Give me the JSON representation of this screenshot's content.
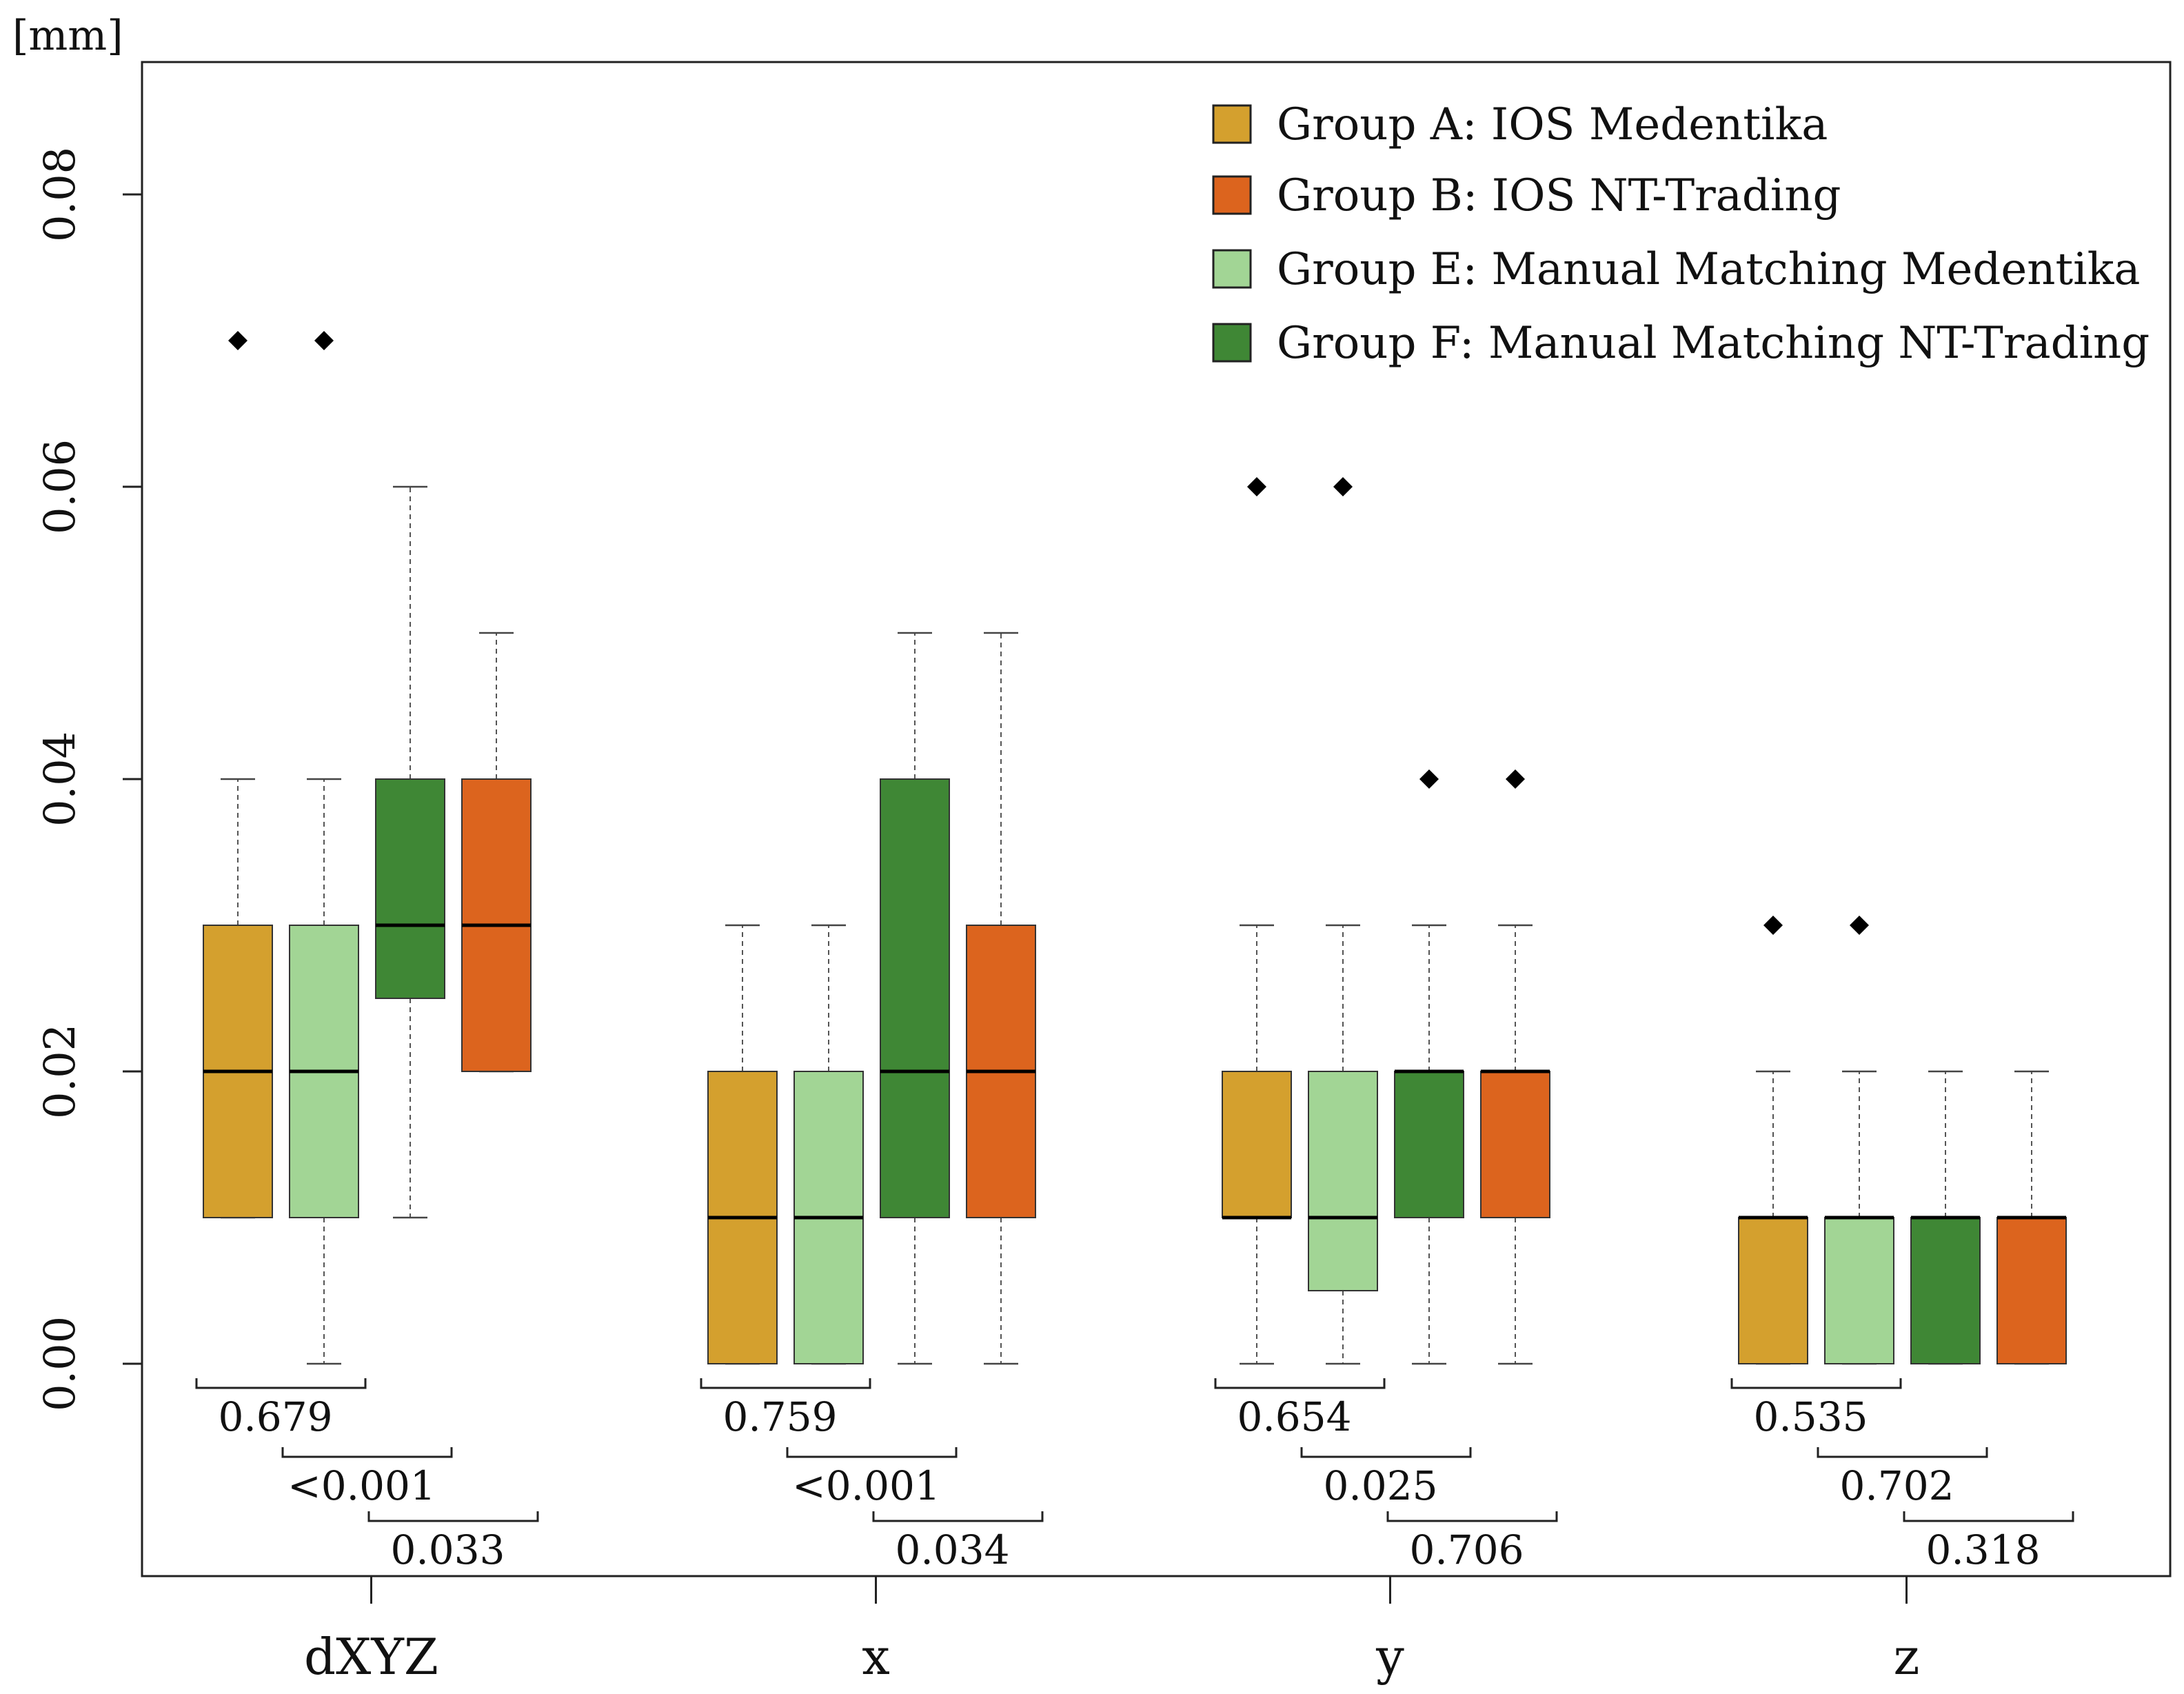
{
  "chart_data": {
    "type": "boxplot",
    "unit_label": "[mm]",
    "ylim": [
      -0.014,
      0.0882
    ],
    "y_ticks": [
      {
        "value": 0.0,
        "label": "0.00"
      },
      {
        "value": 0.02,
        "label": "0.02"
      },
      {
        "value": 0.04,
        "label": "0.04"
      },
      {
        "value": 0.06,
        "label": "0.06"
      },
      {
        "value": 0.08,
        "label": "0.08"
      }
    ],
    "legend_position": "top-right",
    "series": [
      {
        "name": "Group A: IOS Medentika",
        "color": "#D4A02E"
      },
      {
        "name": "Group B: IOS NT-Trading",
        "color": "#DC641E"
      },
      {
        "name": "Group E: Manual Matching Medentika",
        "color": "#A2D595"
      },
      {
        "name": "Group F: Manual Matching NT-Trading",
        "color": "#3F8735"
      }
    ],
    "box_order": [
      "Group A: IOS Medentika",
      "Group E: Manual Matching Medentika",
      "Group F: Manual Matching NT-Trading",
      "Group B: IOS NT-Trading"
    ],
    "categories": [
      {
        "label": "dXYZ",
        "boxes": [
          {
            "series": "Group A: IOS Medentika",
            "whisker_low": 0.01,
            "q1": 0.01,
            "median": 0.02,
            "q3": 0.03,
            "whisker_high": 0.04,
            "outliers": [
              0.07
            ]
          },
          {
            "series": "Group E: Manual Matching Medentika",
            "whisker_low": 0.0,
            "q1": 0.01,
            "median": 0.02,
            "q3": 0.03,
            "whisker_high": 0.04,
            "outliers": [
              0.07
            ]
          },
          {
            "series": "Group F: Manual Matching NT-Trading",
            "whisker_low": 0.01,
            "q1": 0.025,
            "median": 0.03,
            "q3": 0.04,
            "whisker_high": 0.06,
            "outliers": []
          },
          {
            "series": "Group B: IOS NT-Trading",
            "whisker_low": 0.02,
            "q1": 0.02,
            "median": 0.03,
            "q3": 0.04,
            "whisker_high": 0.05,
            "outliers": []
          }
        ],
        "comparisons": [
          {
            "from": 0,
            "to": 1,
            "p": "0.679"
          },
          {
            "from": 1,
            "to": 2,
            "p": "<0.001"
          },
          {
            "from": 2,
            "to": 3,
            "p": "0.033"
          }
        ]
      },
      {
        "label": "x",
        "boxes": [
          {
            "series": "Group A: IOS Medentika",
            "whisker_low": 0.0,
            "q1": 0.0,
            "median": 0.01,
            "q3": 0.02,
            "whisker_high": 0.03,
            "outliers": []
          },
          {
            "series": "Group E: Manual Matching Medentika",
            "whisker_low": 0.0,
            "q1": 0.0,
            "median": 0.01,
            "q3": 0.02,
            "whisker_high": 0.03,
            "outliers": []
          },
          {
            "series": "Group F: Manual Matching NT-Trading",
            "whisker_low": 0.0,
            "q1": 0.01,
            "median": 0.02,
            "q3": 0.04,
            "whisker_high": 0.05,
            "outliers": []
          },
          {
            "series": "Group B: IOS NT-Trading",
            "whisker_low": 0.0,
            "q1": 0.01,
            "median": 0.02,
            "q3": 0.03,
            "whisker_high": 0.05,
            "outliers": []
          }
        ],
        "comparisons": [
          {
            "from": 0,
            "to": 1,
            "p": "0.759"
          },
          {
            "from": 1,
            "to": 2,
            "p": "<0.001"
          },
          {
            "from": 2,
            "to": 3,
            "p": "0.034"
          }
        ]
      },
      {
        "label": "y",
        "boxes": [
          {
            "series": "Group A: IOS Medentika",
            "whisker_low": 0.0,
            "q1": 0.01,
            "median": 0.01,
            "q3": 0.02,
            "whisker_high": 0.03,
            "outliers": [
              0.06
            ]
          },
          {
            "series": "Group E: Manual Matching Medentika",
            "whisker_low": 0.0,
            "q1": 0.005,
            "median": 0.01,
            "q3": 0.02,
            "whisker_high": 0.03,
            "outliers": [
              0.06
            ]
          },
          {
            "series": "Group F: Manual Matching NT-Trading",
            "whisker_low": 0.0,
            "q1": 0.01,
            "median": 0.02,
            "q3": 0.02,
            "whisker_high": 0.03,
            "outliers": [
              0.04
            ]
          },
          {
            "series": "Group B: IOS NT-Trading",
            "whisker_low": 0.0,
            "q1": 0.01,
            "median": 0.02,
            "q3": 0.02,
            "whisker_high": 0.03,
            "outliers": [
              0.04
            ]
          }
        ],
        "comparisons": [
          {
            "from": 0,
            "to": 1,
            "p": "0.654"
          },
          {
            "from": 1,
            "to": 2,
            "p": "0.025"
          },
          {
            "from": 2,
            "to": 3,
            "p": "0.706"
          }
        ]
      },
      {
        "label": "z",
        "boxes": [
          {
            "series": "Group A: IOS Medentika",
            "whisker_low": 0.0,
            "q1": 0.0,
            "median": 0.01,
            "q3": 0.01,
            "whisker_high": 0.02,
            "outliers": [
              0.03
            ]
          },
          {
            "series": "Group E: Manual Matching Medentika",
            "whisker_low": 0.0,
            "q1": 0.0,
            "median": 0.01,
            "q3": 0.01,
            "whisker_high": 0.02,
            "outliers": [
              0.03
            ]
          },
          {
            "series": "Group F: Manual Matching NT-Trading",
            "whisker_low": 0.0,
            "q1": 0.0,
            "median": 0.01,
            "q3": 0.01,
            "whisker_high": 0.02,
            "outliers": []
          },
          {
            "series": "Group B: IOS NT-Trading",
            "whisker_low": 0.0,
            "q1": 0.0,
            "median": 0.01,
            "q3": 0.01,
            "whisker_high": 0.02,
            "outliers": []
          }
        ],
        "comparisons": [
          {
            "from": 0,
            "to": 1,
            "p": "0.535"
          },
          {
            "from": 1,
            "to": 2,
            "p": "0.702"
          },
          {
            "from": 2,
            "to": 3,
            "p": "0.318"
          }
        ]
      }
    ]
  }
}
